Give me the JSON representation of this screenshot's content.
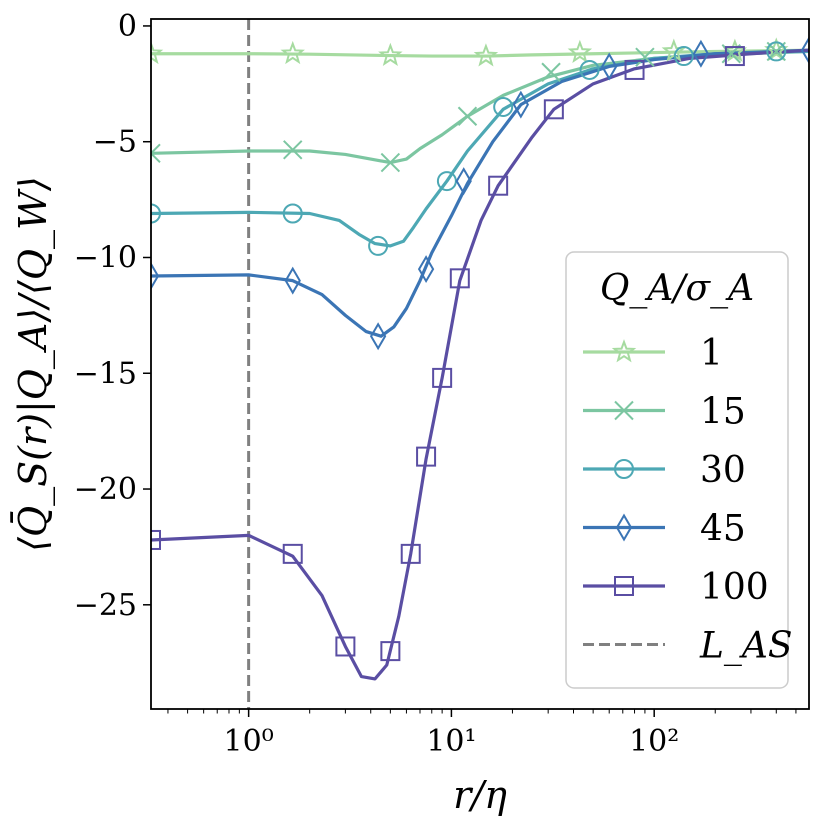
{
  "chart_data": {
    "type": "line",
    "xscale": "log",
    "xlabel": "r/η",
    "ylabel": "⟨Q̄_S(r)|Q_A⟩/⟨Q_W⟩",
    "xlim": [
      0.33,
      580
    ],
    "ylim": [
      -29.5,
      0.3
    ],
    "yticks": [
      0,
      -5,
      -10,
      -15,
      -20,
      -25
    ],
    "ytick_labels": [
      "0",
      "−5",
      "−10",
      "−15",
      "−20",
      "−25"
    ],
    "xticks": [
      1,
      10,
      100
    ],
    "xtick_labels": [
      "10⁰",
      "10¹",
      "10²"
    ],
    "vline": {
      "x": 1,
      "label": "L_AS",
      "color": "#808080"
    },
    "legend": {
      "title": "Q_A/σ_A",
      "placement": "center-right"
    },
    "series": [
      {
        "name": "1",
        "color": "#a6dba0",
        "marker": "star",
        "line": [
          [
            0.33,
            -1.2
          ],
          [
            1,
            -1.2
          ],
          [
            2,
            -1.22
          ],
          [
            5,
            -1.28
          ],
          [
            8,
            -1.3
          ],
          [
            15,
            -1.3
          ],
          [
            25,
            -1.25
          ],
          [
            50,
            -1.2
          ],
          [
            100,
            -1.15
          ],
          [
            200,
            -1.1
          ],
          [
            580,
            -1.05
          ]
        ],
        "markers": [
          [
            0.33,
            -1.2
          ],
          [
            1.65,
            -1.2
          ],
          [
            5,
            -1.28
          ],
          [
            14.8,
            -1.3
          ],
          [
            43,
            -1.15
          ],
          [
            125,
            -1.1
          ],
          [
            250,
            -1.1
          ],
          [
            400,
            -1.05
          ]
        ]
      },
      {
        "name": "15",
        "color": "#7cc6a1",
        "marker": "x",
        "line": [
          [
            0.33,
            -5.5
          ],
          [
            1,
            -5.4
          ],
          [
            2,
            -5.4
          ],
          [
            3,
            -5.55
          ],
          [
            4,
            -5.75
          ],
          [
            5,
            -5.9
          ],
          [
            6,
            -5.75
          ],
          [
            7,
            -5.3
          ],
          [
            9,
            -4.7
          ],
          [
            12,
            -3.9
          ],
          [
            18,
            -3.0
          ],
          [
            30,
            -2.2
          ],
          [
            50,
            -1.7
          ],
          [
            100,
            -1.4
          ],
          [
            200,
            -1.25
          ],
          [
            580,
            -1.1
          ]
        ],
        "markers": [
          [
            0.33,
            -5.5
          ],
          [
            1.65,
            -5.35
          ],
          [
            5,
            -5.9
          ],
          [
            12,
            -3.9
          ],
          [
            31,
            -2.0
          ],
          [
            90,
            -1.35
          ],
          [
            240,
            -1.2
          ],
          [
            400,
            -1.1
          ]
        ]
      },
      {
        "name": "30",
        "color": "#4da8b4",
        "marker": "circle",
        "line": [
          [
            0.33,
            -8.1
          ],
          [
            1,
            -8.05
          ],
          [
            2,
            -8.1
          ],
          [
            2.8,
            -8.4
          ],
          [
            3.5,
            -9.0
          ],
          [
            4.2,
            -9.4
          ],
          [
            5,
            -9.5
          ],
          [
            5.8,
            -9.3
          ],
          [
            6.5,
            -8.7
          ],
          [
            7.5,
            -7.9
          ],
          [
            9.5,
            -6.7
          ],
          [
            12,
            -5.4
          ],
          [
            18,
            -3.6
          ],
          [
            30,
            -2.5
          ],
          [
            50,
            -1.85
          ],
          [
            100,
            -1.4
          ],
          [
            200,
            -1.2
          ],
          [
            580,
            -1.1
          ]
        ],
        "markers": [
          [
            0.33,
            -8.1
          ],
          [
            1.65,
            -8.1
          ],
          [
            4.35,
            -9.5
          ],
          [
            9.5,
            -6.7
          ],
          [
            18,
            -3.5
          ],
          [
            48,
            -1.9
          ],
          [
            140,
            -1.3
          ],
          [
            400,
            -1.1
          ]
        ]
      },
      {
        "name": "45",
        "color": "#3b75b5",
        "marker": "diamond",
        "line": [
          [
            0.33,
            -10.8
          ],
          [
            1,
            -10.75
          ],
          [
            1.65,
            -11.0
          ],
          [
            2.3,
            -11.6
          ],
          [
            3,
            -12.5
          ],
          [
            3.8,
            -13.2
          ],
          [
            4.5,
            -13.4
          ],
          [
            5.2,
            -13.0
          ],
          [
            6,
            -12.2
          ],
          [
            7,
            -11.0
          ],
          [
            8,
            -9.8
          ],
          [
            10,
            -8.2
          ],
          [
            12,
            -6.8
          ],
          [
            16,
            -5.0
          ],
          [
            22,
            -3.4
          ],
          [
            35,
            -2.4
          ],
          [
            60,
            -1.75
          ],
          [
            100,
            -1.45
          ],
          [
            200,
            -1.2
          ],
          [
            580,
            -1.05
          ]
        ],
        "markers": [
          [
            0.33,
            -10.8
          ],
          [
            1.65,
            -11.0
          ],
          [
            4.35,
            -13.4
          ],
          [
            7.5,
            -10.5
          ],
          [
            11.5,
            -6.7
          ],
          [
            22,
            -3.4
          ],
          [
            60,
            -1.75
          ],
          [
            170,
            -1.2
          ],
          [
            580,
            -1.05
          ]
        ]
      },
      {
        "name": "100",
        "color": "#5a4ea3",
        "marker": "square",
        "line": [
          [
            0.33,
            -22.2
          ],
          [
            1,
            -22.0
          ],
          [
            1.65,
            -22.9
          ],
          [
            2.3,
            -24.6
          ],
          [
            3,
            -26.8
          ],
          [
            3.6,
            -28.1
          ],
          [
            4.2,
            -28.2
          ],
          [
            4.8,
            -27.6
          ],
          [
            5.5,
            -25.5
          ],
          [
            6.3,
            -22.8
          ],
          [
            7.5,
            -18.7
          ],
          [
            9,
            -15.2
          ],
          [
            11,
            -11.0
          ],
          [
            14,
            -8.4
          ],
          [
            17,
            -6.9
          ],
          [
            25,
            -4.8
          ],
          [
            32,
            -3.6
          ],
          [
            50,
            -2.5
          ],
          [
            80,
            -1.85
          ],
          [
            150,
            -1.4
          ],
          [
            300,
            -1.2
          ],
          [
            580,
            -1.05
          ]
        ],
        "markers": [
          [
            0.33,
            -22.2
          ],
          [
            1.65,
            -22.8
          ],
          [
            3,
            -26.8
          ],
          [
            5,
            -27.0
          ],
          [
            6.3,
            -22.8
          ],
          [
            7.5,
            -18.6
          ],
          [
            9,
            -15.2
          ],
          [
            11,
            -10.9
          ],
          [
            17,
            -6.9
          ],
          [
            32,
            -3.6
          ],
          [
            80,
            -1.9
          ],
          [
            250,
            -1.3
          ]
        ]
      }
    ]
  }
}
